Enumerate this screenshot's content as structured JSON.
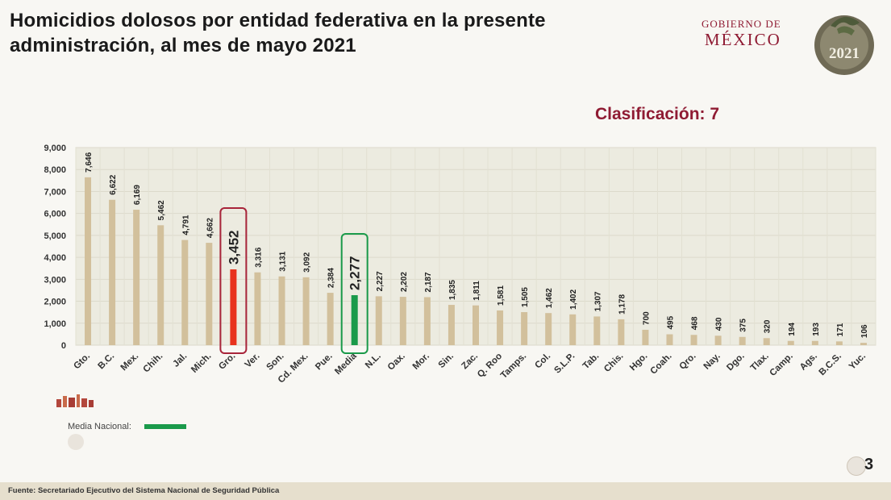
{
  "header": {
    "title": "Homicidios dolosos por entidad federativa en la presente administración, al mes de mayo 2021",
    "gov_line1": "GOBIERNO DE",
    "gov_line2": "MÉXICO",
    "seal_year": "2021"
  },
  "classification": "Clasificación: 7",
  "legend": {
    "label": "Media Nacional:"
  },
  "footer": {
    "source": "Fuente: Secretariado Ejecutivo del Sistema Nacional de Seguridad Pública"
  },
  "page_number": "3",
  "colors": {
    "default_bar": "#d2c09c",
    "highlight_bar": "#e8321d",
    "media_bar": "#1a9a4a",
    "highlight_box": "#a8243a",
    "media_box": "#1a9a4a"
  },
  "chart_data": {
    "type": "bar",
    "title": "",
    "xlabel": "",
    "ylabel": "",
    "ylim": [
      0,
      9000
    ],
    "yticks": [
      0,
      1000,
      2000,
      3000,
      4000,
      5000,
      6000,
      7000,
      8000,
      9000
    ],
    "ytick_labels": [
      "0",
      "1,000",
      "2,000",
      "3,000",
      "4,000",
      "5,000",
      "6,000",
      "7,000",
      "8,000",
      "9,000"
    ],
    "grid": true,
    "categories": [
      "Gto.",
      "B.C.",
      "Mex.",
      "Chih.",
      "Jal.",
      "Mich.",
      "Gro.",
      "Ver.",
      "Son.",
      "Cd. Mex.",
      "Pue.",
      "Media",
      "N.L.",
      "Oax.",
      "Mor.",
      "Sin.",
      "Zac.",
      "Q. Roo",
      "Tamps.",
      "Col.",
      "S.L.P.",
      "Tab.",
      "Chis.",
      "Hgo.",
      "Coah.",
      "Qro.",
      "Nay.",
      "Dgo.",
      "Tlax.",
      "Camp.",
      "Ags.",
      "B.C.S.",
      "Yuc."
    ],
    "values": [
      7646,
      6622,
      6169,
      5462,
      4791,
      4662,
      3452,
      3316,
      3131,
      3092,
      2384,
      2277,
      2227,
      2202,
      2187,
      1835,
      1811,
      1581,
      1505,
      1462,
      1402,
      1307,
      1178,
      700,
      495,
      468,
      430,
      375,
      320,
      194,
      193,
      171,
      106
    ],
    "value_labels": [
      "7,646",
      "6,622",
      "6,169",
      "5,462",
      "4,791",
      "4,662",
      "3,452",
      "3,316",
      "3,131",
      "3,092",
      "2,384",
      "2,277",
      "2,227",
      "2,202",
      "2,187",
      "1,835",
      "1,811",
      "1,581",
      "1,505",
      "1,462",
      "1,402",
      "1,307",
      "1,178",
      "700",
      "495",
      "468",
      "430",
      "375",
      "320",
      "194",
      "193",
      "171",
      "106"
    ],
    "highlight": "Gro.",
    "media": "Media"
  }
}
